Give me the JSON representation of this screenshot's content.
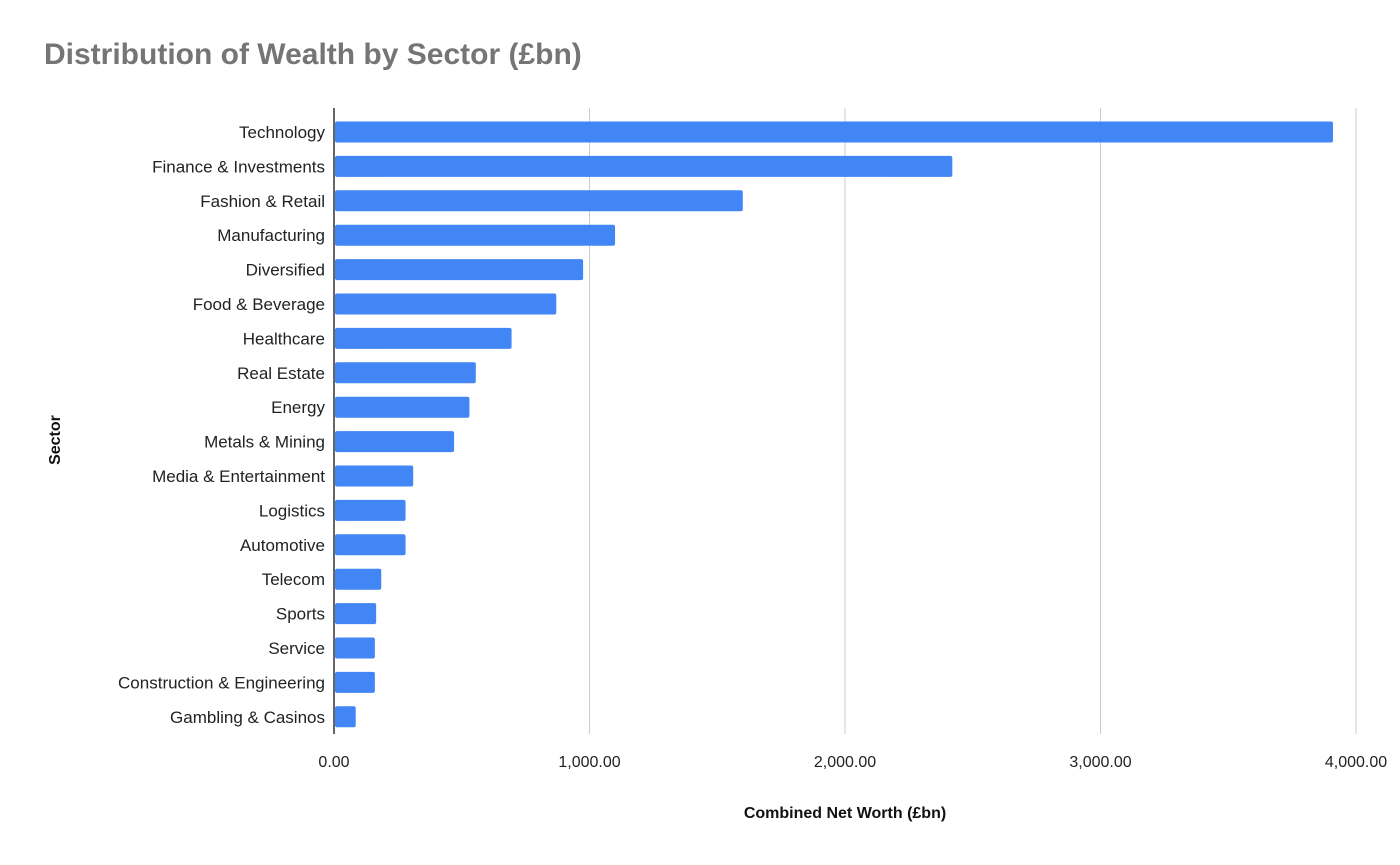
{
  "chart_data": {
    "type": "bar",
    "orientation": "horizontal",
    "title": "Distribution of Wealth by Sector (£bn)",
    "xlabel": "Combined Net Worth  (£bn)",
    "ylabel": "Sector",
    "xlim": [
      0,
      4000
    ],
    "x_ticks": [
      "0.00",
      "1,000.00",
      "2,000.00",
      "3,000.00",
      "4,000.00"
    ],
    "grid": "vertical",
    "bar_color": "#4285F4",
    "categories": [
      "Technology",
      "Finance & Investments",
      "Fashion & Retail",
      "Manufacturing",
      "Diversified",
      "Food & Beverage",
      "Healthcare",
      "Real Estate",
      "Energy",
      "Metals & Mining",
      "Media & Entertainment",
      "Logistics",
      "Automotive",
      "Telecom",
      "Sports",
      "Service",
      "Construction & Engineering",
      "Gambling & Casinos"
    ],
    "values": [
      3910,
      2420,
      1600,
      1100,
      975,
      870,
      695,
      555,
      530,
      470,
      310,
      280,
      280,
      185,
      165,
      160,
      160,
      85
    ]
  }
}
